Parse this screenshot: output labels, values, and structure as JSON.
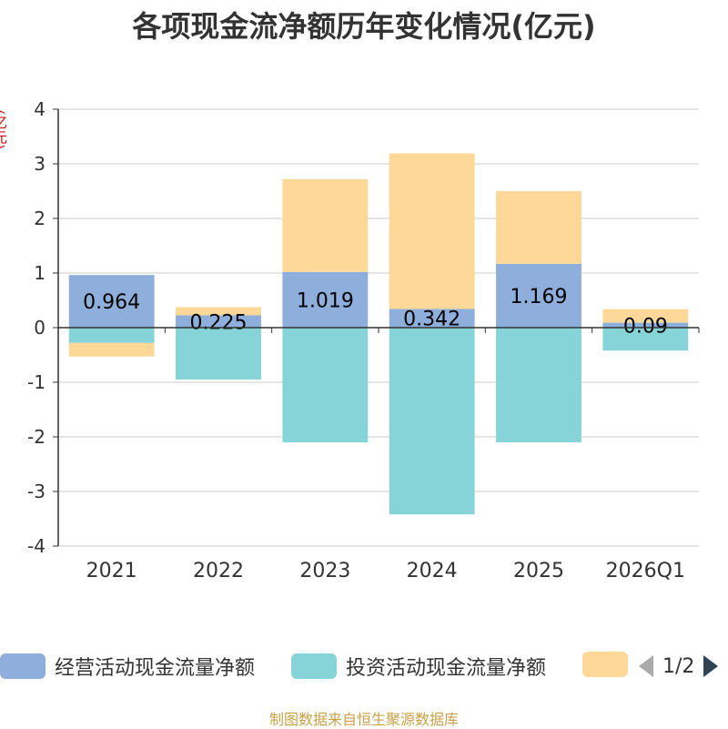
{
  "title": "各项现金流净额历年变化情况(亿元)",
  "unit_label": "(亿元)",
  "source": "制图数据来自恒生聚源数据库",
  "colors": {
    "operating": "#8eaedb",
    "investing": "#86d4d8",
    "financing": "#fed899",
    "axis": "#333333",
    "grid": "#cccccc"
  },
  "legend": {
    "items": [
      "经营活动现金流量净额",
      "投资活动现金流量净额",
      ""
    ],
    "page": "1/2",
    "prev_icon": "triangle-left-icon",
    "next_icon": "triangle-right-icon"
  },
  "chart_data": {
    "type": "bar",
    "stacked": true,
    "categories": [
      "2021",
      "2022",
      "2023",
      "2024",
      "2025",
      "2026Q1"
    ],
    "series": [
      {
        "name": "经营活动现金流量净额",
        "values": [
          0.964,
          0.225,
          1.019,
          0.342,
          1.169,
          0.09
        ],
        "labels": [
          "0.964",
          "0.225",
          "1.019",
          "0.342",
          "1.169",
          "0.09"
        ]
      },
      {
        "name": "投资活动现金流量净额",
        "values": [
          -0.28,
          -0.95,
          -2.1,
          -3.42,
          -2.1,
          -0.42
        ]
      },
      {
        "name": "",
        "values": [
          -0.25,
          0.15,
          1.7,
          2.85,
          1.33,
          0.25
        ]
      }
    ],
    "ylim": [
      -4,
      4
    ],
    "yticks": [
      4,
      3,
      2,
      1,
      0,
      -1,
      -2,
      -3,
      -4
    ],
    "grid": true,
    "legend_position": "bottom"
  }
}
